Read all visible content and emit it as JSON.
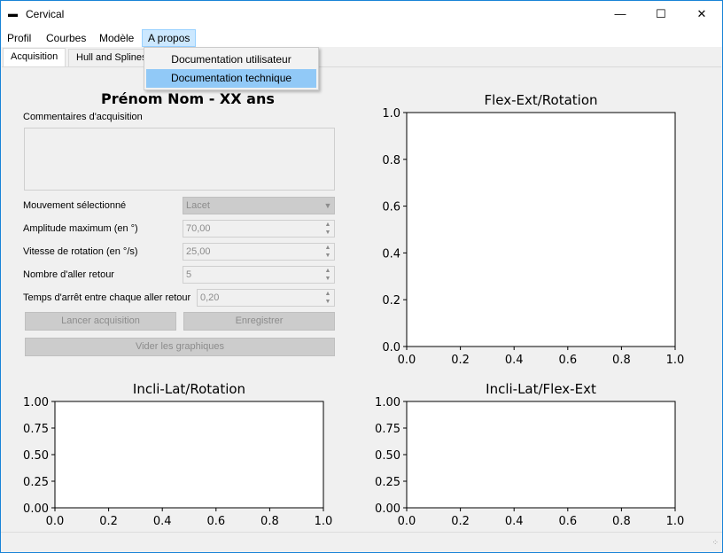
{
  "window": {
    "title": "Cervical",
    "min_icon": "minimize-icon",
    "max_icon": "maximize-icon",
    "close_icon": "close-icon"
  },
  "menu": [
    {
      "label": "Profil"
    },
    {
      "label": "Courbes"
    },
    {
      "label": "Modèle"
    },
    {
      "label": "A propos"
    }
  ],
  "dropdown": {
    "items": [
      {
        "label": "Documentation utilisateur"
      },
      {
        "label": "Documentation technique"
      }
    ]
  },
  "tabs": [
    {
      "label": "Acquisition"
    },
    {
      "label": "Hull and Splines"
    }
  ],
  "acquisition": {
    "heading": "Prénom Nom - XX ans",
    "comment_label": "Commentaires d'acquisition",
    "fields": [
      {
        "label": "Mouvement sélectionné",
        "value": "Lacet"
      },
      {
        "label": "Amplitude maximum (en °)",
        "value": "70,00"
      },
      {
        "label": "Vitesse de rotation (en °/s)",
        "value": "25,00"
      },
      {
        "label": "Nombre d'aller retour",
        "value": "5"
      },
      {
        "label": "Temps d'arrêt entre chaque aller retour",
        "value": "0,20"
      }
    ],
    "buttons": {
      "start": "Lancer acquisition",
      "save": "Enregistrer",
      "clear": "Vider les graphiques"
    }
  },
  "chart_data": [
    {
      "type": "line",
      "title": "Flex-Ext/Rotation",
      "series": [],
      "xlim": [
        0,
        1
      ],
      "ylim": [
        0,
        1
      ],
      "xticks": [
        "0.0",
        "0.2",
        "0.4",
        "0.6",
        "0.8",
        "1.0"
      ],
      "yticks": [
        "0.0",
        "0.2",
        "0.4",
        "0.6",
        "0.8",
        "1.0"
      ]
    },
    {
      "type": "line",
      "title": "Incli-Lat/Rotation",
      "series": [],
      "xlim": [
        0,
        1
      ],
      "ylim": [
        0,
        1
      ],
      "xticks": [
        "0.0",
        "0.2",
        "0.4",
        "0.6",
        "0.8",
        "1.0"
      ],
      "yticks": [
        "0.00",
        "0.25",
        "0.50",
        "0.75",
        "1.00"
      ]
    },
    {
      "type": "line",
      "title": "Incli-Lat/Flex-Ext",
      "series": [],
      "xlim": [
        0,
        1
      ],
      "ylim": [
        0,
        1
      ],
      "xticks": [
        "0.0",
        "0.2",
        "0.4",
        "0.6",
        "0.8",
        "1.0"
      ],
      "yticks": [
        "0.00",
        "0.25",
        "0.50",
        "0.75",
        "1.00"
      ]
    }
  ]
}
